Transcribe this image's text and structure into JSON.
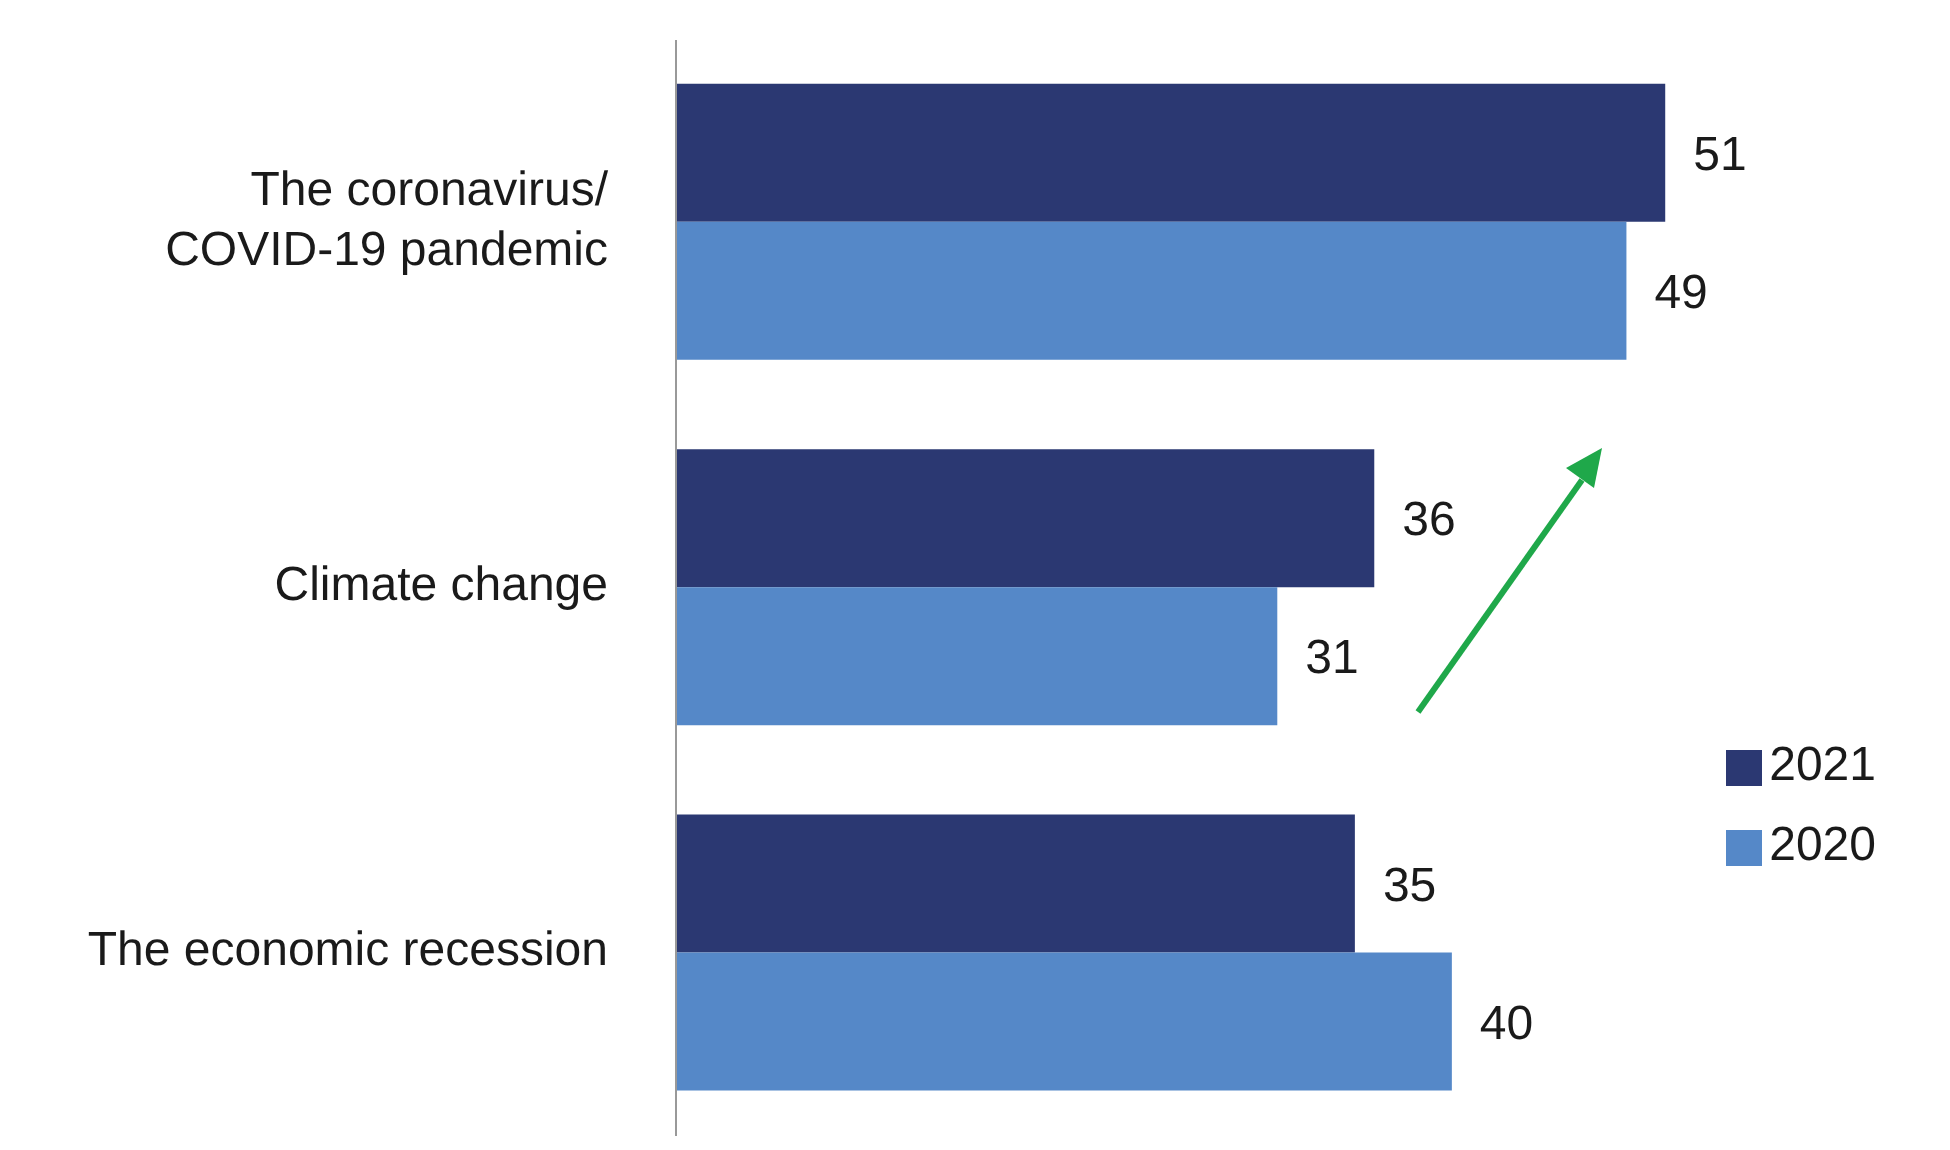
{
  "chart_data": {
    "type": "bar",
    "orientation": "horizontal",
    "categories": [
      "The coronavirus/ COVID-19 pandemic",
      "Climate change",
      "The economic recession"
    ],
    "series": [
      {
        "name": "2021",
        "color": "#2b3872",
        "values": [
          51,
          36,
          35
        ]
      },
      {
        "name": "2020",
        "color": "#5588c8",
        "values": [
          49,
          31,
          40
        ]
      }
    ],
    "data_labels": true,
    "legend": "right"
  }
}
